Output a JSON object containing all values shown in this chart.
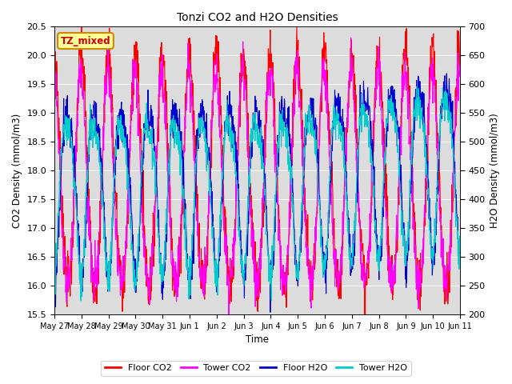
{
  "title": "Tonzi CO2 and H2O Densities",
  "xlabel": "Time",
  "ylabel_left": "CO2 Density (mmol/m3)",
  "ylabel_right": "H2O Density (mmol/m3)",
  "ylim_left": [
    15.5,
    20.5
  ],
  "ylim_right": [
    200,
    700
  ],
  "yticks_left": [
    15.5,
    16.0,
    16.5,
    17.0,
    17.5,
    18.0,
    18.5,
    19.0,
    19.5,
    20.0,
    20.5
  ],
  "yticks_right": [
    200,
    250,
    300,
    350,
    400,
    450,
    500,
    550,
    600,
    650,
    700
  ],
  "colors": {
    "floor_co2": "#FF0000",
    "tower_co2": "#FF00FF",
    "floor_h2o": "#0000CC",
    "tower_h2o": "#00CCCC"
  },
  "legend_labels": [
    "Floor CO2",
    "Tower CO2",
    "Floor H2O",
    "Tower H2O"
  ],
  "annotation_text": "TZ_mixed",
  "annotation_color": "#CC0000",
  "annotation_bg": "#FFFF99",
  "annotation_border": "#CC8800",
  "n_days": 15,
  "pts_per_day": 96,
  "xtick_labels": [
    "May 27",
    "May 28",
    "May 29",
    "May 30",
    "May 31",
    "Jun 1",
    "Jun 2",
    "Jun 3",
    "Jun 4",
    "Jun 5",
    "Jun 6",
    "Jun 7",
    "Jun 8",
    "Jun 9",
    "Jun 10",
    "Jun 11"
  ],
  "background_color": "#DCDCDC",
  "line_width": 0.8,
  "figsize": [
    6.4,
    4.8
  ],
  "dpi": 100
}
